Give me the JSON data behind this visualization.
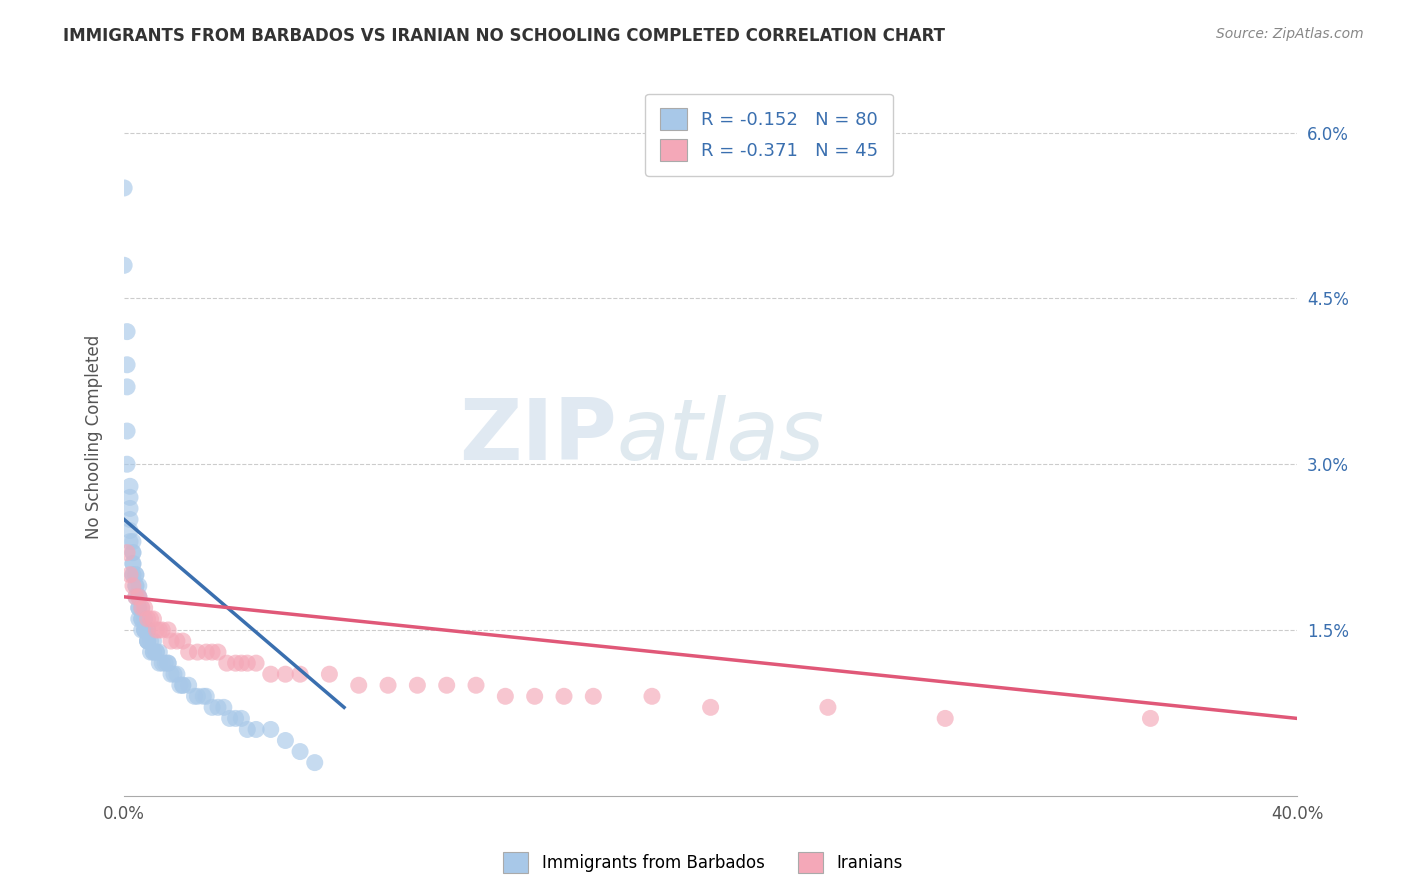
{
  "title": "IMMIGRANTS FROM BARBADOS VS IRANIAN NO SCHOOLING COMPLETED CORRELATION CHART",
  "source": "Source: ZipAtlas.com",
  "ylabel": "No Schooling Completed",
  "xlim": [
    0.0,
    0.4
  ],
  "ylim": [
    0.0,
    0.065
  ],
  "xtick_positions": [
    0.0,
    0.4
  ],
  "xtick_labels": [
    "0.0%",
    "40.0%"
  ],
  "ytick_positions": [
    0.015,
    0.03,
    0.045,
    0.06
  ],
  "ytick_labels": [
    "1.5%",
    "3.0%",
    "4.5%",
    "6.0%"
  ],
  "blue_R": -0.152,
  "blue_N": 80,
  "pink_R": -0.371,
  "pink_N": 45,
  "blue_color": "#a8c8e8",
  "pink_color": "#f4a8b8",
  "blue_line_color": "#3a6faf",
  "pink_line_color": "#e05878",
  "legend_label_blue": "Immigrants from Barbados",
  "legend_label_pink": "Iranians",
  "watermark_zip": "ZIP",
  "watermark_atlas": "atlas",
  "blue_scatter_x": [
    0.0,
    0.0,
    0.001,
    0.001,
    0.001,
    0.001,
    0.001,
    0.002,
    0.002,
    0.002,
    0.002,
    0.002,
    0.002,
    0.003,
    0.003,
    0.003,
    0.003,
    0.003,
    0.003,
    0.003,
    0.004,
    0.004,
    0.004,
    0.004,
    0.004,
    0.005,
    0.005,
    0.005,
    0.005,
    0.005,
    0.005,
    0.006,
    0.006,
    0.006,
    0.006,
    0.007,
    0.007,
    0.007,
    0.007,
    0.008,
    0.008,
    0.008,
    0.008,
    0.008,
    0.009,
    0.009,
    0.01,
    0.01,
    0.01,
    0.011,
    0.011,
    0.012,
    0.012,
    0.013,
    0.014,
    0.015,
    0.015,
    0.016,
    0.017,
    0.018,
    0.019,
    0.02,
    0.02,
    0.022,
    0.024,
    0.025,
    0.027,
    0.028,
    0.03,
    0.032,
    0.034,
    0.036,
    0.038,
    0.04,
    0.042,
    0.045,
    0.05,
    0.055,
    0.06,
    0.065
  ],
  "blue_scatter_y": [
    0.055,
    0.048,
    0.042,
    0.039,
    0.037,
    0.033,
    0.03,
    0.028,
    0.027,
    0.026,
    0.025,
    0.024,
    0.023,
    0.023,
    0.022,
    0.022,
    0.021,
    0.021,
    0.02,
    0.02,
    0.02,
    0.02,
    0.019,
    0.019,
    0.018,
    0.019,
    0.018,
    0.018,
    0.017,
    0.017,
    0.016,
    0.017,
    0.016,
    0.016,
    0.015,
    0.016,
    0.015,
    0.015,
    0.015,
    0.015,
    0.015,
    0.014,
    0.014,
    0.014,
    0.014,
    0.013,
    0.014,
    0.013,
    0.013,
    0.013,
    0.013,
    0.013,
    0.012,
    0.012,
    0.012,
    0.012,
    0.012,
    0.011,
    0.011,
    0.011,
    0.01,
    0.01,
    0.01,
    0.01,
    0.009,
    0.009,
    0.009,
    0.009,
    0.008,
    0.008,
    0.008,
    0.007,
    0.007,
    0.007,
    0.006,
    0.006,
    0.006,
    0.005,
    0.004,
    0.003
  ],
  "pink_scatter_x": [
    0.001,
    0.002,
    0.003,
    0.004,
    0.005,
    0.006,
    0.007,
    0.008,
    0.009,
    0.01,
    0.011,
    0.012,
    0.013,
    0.015,
    0.016,
    0.018,
    0.02,
    0.022,
    0.025,
    0.028,
    0.03,
    0.032,
    0.035,
    0.038,
    0.04,
    0.042,
    0.045,
    0.05,
    0.055,
    0.06,
    0.07,
    0.08,
    0.09,
    0.1,
    0.11,
    0.12,
    0.13,
    0.14,
    0.15,
    0.16,
    0.18,
    0.2,
    0.24,
    0.28,
    0.35
  ],
  "pink_scatter_y": [
    0.022,
    0.02,
    0.019,
    0.018,
    0.018,
    0.017,
    0.017,
    0.016,
    0.016,
    0.016,
    0.015,
    0.015,
    0.015,
    0.015,
    0.014,
    0.014,
    0.014,
    0.013,
    0.013,
    0.013,
    0.013,
    0.013,
    0.012,
    0.012,
    0.012,
    0.012,
    0.012,
    0.011,
    0.011,
    0.011,
    0.011,
    0.01,
    0.01,
    0.01,
    0.01,
    0.01,
    0.009,
    0.009,
    0.009,
    0.009,
    0.009,
    0.008,
    0.008,
    0.007,
    0.007
  ],
  "blue_line_x": [
    0.0,
    0.075
  ],
  "blue_line_y": [
    0.025,
    0.008
  ],
  "pink_line_x": [
    0.0,
    0.4
  ],
  "pink_line_y": [
    0.018,
    0.007
  ]
}
